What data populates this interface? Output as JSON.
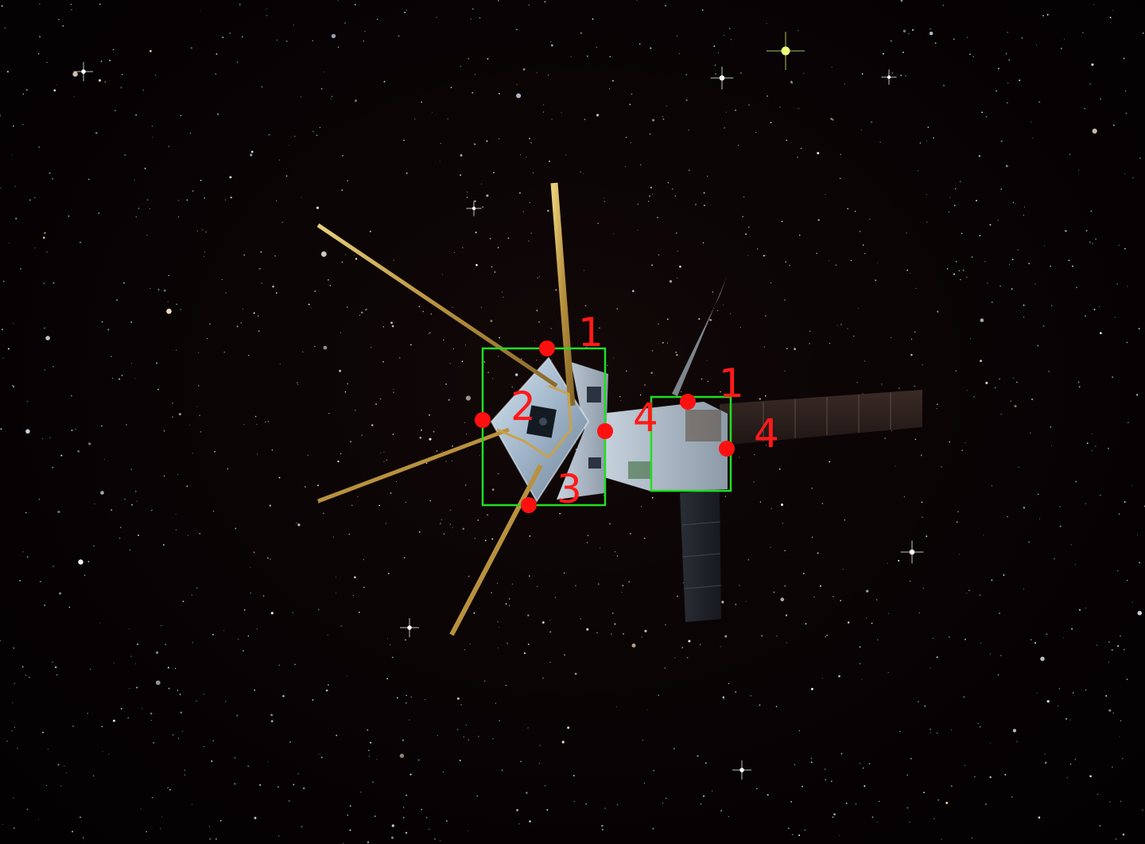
{
  "image": {
    "background": "starfield",
    "subject": "cubesat-with-antennas-and-solar-panels"
  },
  "colors": {
    "bbox": "#22dd22",
    "keypoint": "#ff1010",
    "label": "#ff1a1a"
  },
  "annotations": {
    "box_a": {
      "keypoints": [
        {
          "label": "1"
        },
        {
          "label": "2"
        },
        {
          "label": "3"
        },
        {
          "label": "4"
        }
      ]
    },
    "box_b": {
      "keypoints": [
        {
          "label": "1"
        },
        {
          "label": "4"
        }
      ]
    }
  }
}
